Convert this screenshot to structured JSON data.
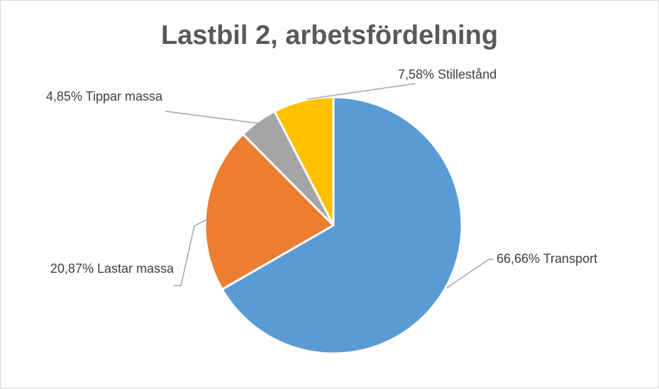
{
  "chart_data": {
    "type": "pie",
    "title": "Lastbil 2, arbetsfördelning",
    "slices": [
      {
        "label": "Transport",
        "value": 66.66,
        "data_label": "66,66% Transport",
        "color": "#5b9bd5"
      },
      {
        "label": "Lastar massa",
        "value": 20.87,
        "data_label": "20,87% Lastar massa",
        "color": "#ed7d31"
      },
      {
        "label": "Tippar massa",
        "value": 4.85,
        "data_label": "4,85% Tippar massa",
        "color": "#a5a5a5"
      },
      {
        "label": "Stillestånd",
        "value": 7.58,
        "data_label": "7,58% Stillestånd",
        "color": "#ffc000"
      }
    ],
    "legend": "none"
  }
}
